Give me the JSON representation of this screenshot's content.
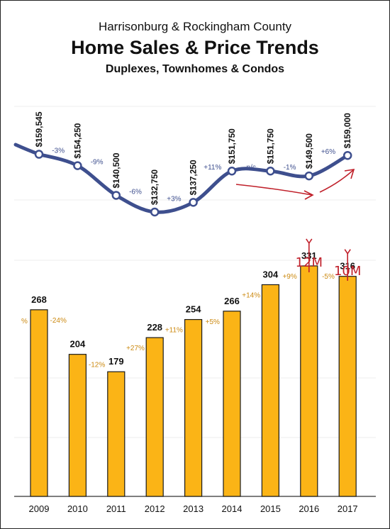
{
  "supertitle": "Harrisonburg & Rockingham County",
  "title": "Home Sales & Price Trends",
  "subtitle": "Duplexes, Townhomes & Condos",
  "colors": {
    "line": "#3e4f8e",
    "bar": "#fbb416",
    "pct_price": "#3e4f8e",
    "pct_sales": "#cc8a12",
    "annotation": "#c0202a"
  },
  "chart_data": [
    {
      "type": "line",
      "x": [
        "2009",
        "2010",
        "2011",
        "2012",
        "2013",
        "2014",
        "2015",
        "2016",
        "2017"
      ],
      "values": [
        159545,
        154250,
        140500,
        132750,
        137250,
        151750,
        151750,
        149500,
        159000
      ],
      "value_labels": [
        "$159,545",
        "$154,250",
        "$140,500",
        "$132,750",
        "$137,250",
        "$151,750",
        "$151,750",
        "$149,500",
        "$159,000"
      ],
      "change_labels": [
        "-3%",
        "-9%",
        "-6%",
        "+3%",
        "+11%",
        "n/c",
        "-1%",
        "+6%"
      ]
    },
    {
      "type": "bar",
      "categories": [
        "2009",
        "2010",
        "2011",
        "2012",
        "2013",
        "2014",
        "2015",
        "2016",
        "2017"
      ],
      "values": [
        268,
        204,
        179,
        228,
        254,
        266,
        304,
        331,
        316
      ],
      "value_labels": [
        "268",
        "204",
        "179",
        "228",
        "254",
        "266",
        "304",
        "331",
        "316"
      ],
      "change_labels": [
        "-24%",
        "-12%",
        "+27%",
        "+11%",
        "+5%",
        "+14%",
        "+9%",
        "-5%"
      ],
      "edge_label": "%",
      "annotations": [
        {
          "category": "2016",
          "text": "12M"
        },
        {
          "category": "2017",
          "text": "10M"
        }
      ]
    }
  ]
}
